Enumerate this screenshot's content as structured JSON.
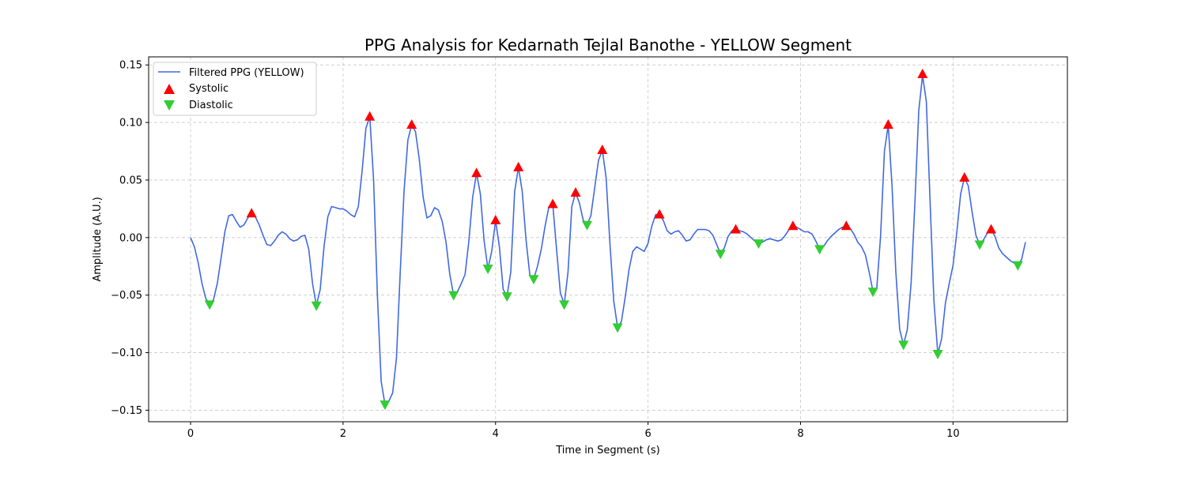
{
  "chart_data": {
    "type": "line",
    "title": "PPG Analysis for Kedarnath Tejlal Banothe - YELLOW Segment",
    "xlabel": "Time in Segment (s)",
    "ylabel": "Amplitude (A.U.)",
    "xlim": [
      -0.55,
      11.5
    ],
    "ylim": [
      -0.16,
      0.157
    ],
    "x_ticks": [
      0,
      2,
      4,
      6,
      8,
      10
    ],
    "x_tick_labels": [
      "0",
      "2",
      "4",
      "6",
      "8",
      "10"
    ],
    "y_ticks": [
      -0.15,
      -0.1,
      -0.05,
      0.0,
      0.05,
      0.1,
      0.15
    ],
    "y_tick_labels": [
      "−0.15",
      "−0.10",
      "−0.05",
      "0.00",
      "0.05",
      "0.10",
      "0.15"
    ],
    "grid": true,
    "legend_position": "upper-left",
    "colors": {
      "line": "#4169e1",
      "systolic": "#ff0000",
      "diastolic": "#32cd32"
    },
    "series": [
      {
        "name": "Filtered PPG (YELLOW)",
        "kind": "line",
        "points": [
          [
            0.0,
            0.0
          ],
          [
            0.05,
            -0.008
          ],
          [
            0.1,
            -0.022
          ],
          [
            0.15,
            -0.04
          ],
          [
            0.2,
            -0.053
          ],
          [
            0.25,
            -0.058
          ],
          [
            0.3,
            -0.054
          ],
          [
            0.35,
            -0.04
          ],
          [
            0.4,
            -0.018
          ],
          [
            0.45,
            0.005
          ],
          [
            0.5,
            0.019
          ],
          [
            0.55,
            0.02
          ],
          [
            0.6,
            0.014
          ],
          [
            0.65,
            0.009
          ],
          [
            0.7,
            0.011
          ],
          [
            0.75,
            0.017
          ],
          [
            0.8,
            0.021
          ],
          [
            0.85,
            0.018
          ],
          [
            0.9,
            0.011
          ],
          [
            0.95,
            0.002
          ],
          [
            1.0,
            -0.006
          ],
          [
            1.05,
            -0.007
          ],
          [
            1.1,
            -0.003
          ],
          [
            1.15,
            0.002
          ],
          [
            1.2,
            0.005
          ],
          [
            1.25,
            0.003
          ],
          [
            1.3,
            -0.001
          ],
          [
            1.35,
            -0.003
          ],
          [
            1.4,
            -0.002
          ],
          [
            1.45,
            0.001
          ],
          [
            1.5,
            0.002
          ],
          [
            1.55,
            -0.01
          ],
          [
            1.6,
            -0.04
          ],
          [
            1.65,
            -0.059
          ],
          [
            1.7,
            -0.045
          ],
          [
            1.75,
            -0.008
          ],
          [
            1.8,
            0.018
          ],
          [
            1.85,
            0.027
          ],
          [
            1.9,
            0.026
          ],
          [
            1.95,
            0.025
          ],
          [
            2.0,
            0.025
          ],
          [
            2.05,
            0.023
          ],
          [
            2.1,
            0.02
          ],
          [
            2.15,
            0.018
          ],
          [
            2.2,
            0.027
          ],
          [
            2.25,
            0.058
          ],
          [
            2.3,
            0.095
          ],
          [
            2.35,
            0.105
          ],
          [
            2.4,
            0.05
          ],
          [
            2.45,
            -0.05
          ],
          [
            2.5,
            -0.125
          ],
          [
            2.55,
            -0.145
          ],
          [
            2.6,
            -0.142
          ],
          [
            2.65,
            -0.135
          ],
          [
            2.7,
            -0.105
          ],
          [
            2.75,
            -0.03
          ],
          [
            2.8,
            0.04
          ],
          [
            2.85,
            0.085
          ],
          [
            2.9,
            0.098
          ],
          [
            2.95,
            0.092
          ],
          [
            3.0,
            0.068
          ],
          [
            3.05,
            0.035
          ],
          [
            3.1,
            0.017
          ],
          [
            3.15,
            0.019
          ],
          [
            3.2,
            0.026
          ],
          [
            3.25,
            0.024
          ],
          [
            3.3,
            0.014
          ],
          [
            3.35,
            -0.004
          ],
          [
            3.4,
            -0.032
          ],
          [
            3.45,
            -0.05
          ],
          [
            3.5,
            -0.047
          ],
          [
            3.55,
            -0.04
          ],
          [
            3.6,
            -0.032
          ],
          [
            3.65,
            -0.003
          ],
          [
            3.7,
            0.035
          ],
          [
            3.75,
            0.056
          ],
          [
            3.8,
            0.038
          ],
          [
            3.85,
            -0.003
          ],
          [
            3.9,
            -0.027
          ],
          [
            3.95,
            -0.012
          ],
          [
            4.0,
            0.015
          ],
          [
            4.05,
            -0.008
          ],
          [
            4.1,
            -0.045
          ],
          [
            4.15,
            -0.051
          ],
          [
            4.2,
            -0.03
          ],
          [
            4.25,
            0.04
          ],
          [
            4.3,
            0.061
          ],
          [
            4.35,
            0.04
          ],
          [
            4.4,
            -0.002
          ],
          [
            4.45,
            -0.033
          ],
          [
            4.5,
            -0.036
          ],
          [
            4.55,
            -0.025
          ],
          [
            4.6,
            -0.01
          ],
          [
            4.65,
            0.01
          ],
          [
            4.7,
            0.027
          ],
          [
            4.75,
            0.029
          ],
          [
            4.8,
            -0.01
          ],
          [
            4.85,
            -0.048
          ],
          [
            4.9,
            -0.058
          ],
          [
            4.95,
            -0.03
          ],
          [
            5.0,
            0.027
          ],
          [
            5.05,
            0.039
          ],
          [
            5.1,
            0.03
          ],
          [
            5.15,
            0.015
          ],
          [
            5.2,
            0.011
          ],
          [
            5.25,
            0.019
          ],
          [
            5.3,
            0.043
          ],
          [
            5.35,
            0.067
          ],
          [
            5.4,
            0.076
          ],
          [
            5.45,
            0.052
          ],
          [
            5.5,
            -0.005
          ],
          [
            5.55,
            -0.055
          ],
          [
            5.6,
            -0.078
          ],
          [
            5.65,
            -0.073
          ],
          [
            5.7,
            -0.052
          ],
          [
            5.75,
            -0.028
          ],
          [
            5.8,
            -0.012
          ],
          [
            5.85,
            -0.008
          ],
          [
            5.9,
            -0.01
          ],
          [
            5.95,
            -0.012
          ],
          [
            6.0,
            -0.005
          ],
          [
            6.05,
            0.01
          ],
          [
            6.1,
            0.02
          ],
          [
            6.15,
            0.02
          ],
          [
            6.2,
            0.015
          ],
          [
            6.25,
            0.006
          ],
          [
            6.3,
            0.003
          ],
          [
            6.35,
            0.005
          ],
          [
            6.4,
            0.006
          ],
          [
            6.45,
            0.002
          ],
          [
            6.5,
            -0.003
          ],
          [
            6.55,
            -0.002
          ],
          [
            6.6,
            0.003
          ],
          [
            6.65,
            0.007
          ],
          [
            6.7,
            0.007
          ],
          [
            6.75,
            0.007
          ],
          [
            6.8,
            0.006
          ],
          [
            6.85,
            0.002
          ],
          [
            6.9,
            -0.006
          ],
          [
            6.95,
            -0.014
          ],
          [
            7.0,
            -0.009
          ],
          [
            7.05,
            0.001
          ],
          [
            7.1,
            0.006
          ],
          [
            7.15,
            0.007
          ],
          [
            7.2,
            0.006
          ],
          [
            7.25,
            0.005
          ],
          [
            7.3,
            0.003
          ],
          [
            7.35,
            0.0
          ],
          [
            7.4,
            -0.003
          ],
          [
            7.45,
            -0.005
          ],
          [
            7.5,
            -0.004
          ],
          [
            7.55,
            -0.002
          ],
          [
            7.6,
            -0.001
          ],
          [
            7.65,
            -0.002
          ],
          [
            7.7,
            -0.003
          ],
          [
            7.75,
            -0.002
          ],
          [
            7.8,
            0.002
          ],
          [
            7.85,
            0.007
          ],
          [
            7.9,
            0.01
          ],
          [
            7.95,
            0.009
          ],
          [
            8.0,
            0.007
          ],
          [
            8.05,
            0.005
          ],
          [
            8.1,
            0.005
          ],
          [
            8.15,
            0.003
          ],
          [
            8.2,
            -0.003
          ],
          [
            8.25,
            -0.01
          ],
          [
            8.3,
            -0.008
          ],
          [
            8.35,
            -0.003
          ],
          [
            8.4,
            0.001
          ],
          [
            8.45,
            0.004
          ],
          [
            8.5,
            0.007
          ],
          [
            8.55,
            0.009
          ],
          [
            8.6,
            0.01
          ],
          [
            8.65,
            0.008
          ],
          [
            8.7,
            0.003
          ],
          [
            8.75,
            -0.004
          ],
          [
            8.8,
            -0.008
          ],
          [
            8.85,
            -0.015
          ],
          [
            8.9,
            -0.03
          ],
          [
            8.95,
            -0.047
          ],
          [
            9.0,
            -0.044
          ],
          [
            9.05,
            0.001
          ],
          [
            9.1,
            0.075
          ],
          [
            9.15,
            0.098
          ],
          [
            9.2,
            0.045
          ],
          [
            9.25,
            -0.03
          ],
          [
            9.3,
            -0.08
          ],
          [
            9.35,
            -0.093
          ],
          [
            9.4,
            -0.08
          ],
          [
            9.45,
            -0.04
          ],
          [
            9.5,
            0.03
          ],
          [
            9.55,
            0.11
          ],
          [
            9.6,
            0.141
          ],
          [
            9.65,
            0.118
          ],
          [
            9.7,
            0.03
          ],
          [
            9.75,
            -0.055
          ],
          [
            9.8,
            -0.101
          ],
          [
            9.85,
            -0.088
          ],
          [
            9.9,
            -0.057
          ],
          [
            9.95,
            -0.04
          ],
          [
            10.0,
            -0.024
          ],
          [
            10.05,
            0.005
          ],
          [
            10.1,
            0.038
          ],
          [
            10.15,
            0.052
          ],
          [
            10.2,
            0.045
          ],
          [
            10.25,
            0.022
          ],
          [
            10.3,
            0.002
          ],
          [
            10.35,
            -0.006
          ],
          [
            10.4,
            -0.002
          ],
          [
            10.45,
            0.004
          ],
          [
            10.5,
            0.007
          ],
          [
            10.55,
            0.001
          ],
          [
            10.6,
            -0.009
          ],
          [
            10.65,
            -0.014
          ],
          [
            10.7,
            -0.017
          ],
          [
            10.75,
            -0.02
          ],
          [
            10.8,
            -0.022
          ],
          [
            10.85,
            -0.024
          ],
          [
            10.9,
            -0.019
          ],
          [
            10.95,
            -0.004
          ]
        ]
      },
      {
        "name": "Systolic",
        "kind": "marker-up",
        "points": [
          [
            0.8,
            0.021
          ],
          [
            2.35,
            0.105
          ],
          [
            2.9,
            0.098
          ],
          [
            3.75,
            0.056
          ],
          [
            4.0,
            0.015
          ],
          [
            4.3,
            0.061
          ],
          [
            4.75,
            0.029
          ],
          [
            5.05,
            0.039
          ],
          [
            5.4,
            0.076
          ],
          [
            6.15,
            0.02
          ],
          [
            7.15,
            0.007
          ],
          [
            7.9,
            0.01
          ],
          [
            8.6,
            0.01
          ],
          [
            9.15,
            0.098
          ],
          [
            9.6,
            0.142
          ],
          [
            10.15,
            0.052
          ],
          [
            10.5,
            0.007
          ]
        ]
      },
      {
        "name": "Diastolic",
        "kind": "marker-down",
        "points": [
          [
            0.25,
            -0.058
          ],
          [
            1.65,
            -0.059
          ],
          [
            2.55,
            -0.145
          ],
          [
            3.45,
            -0.05
          ],
          [
            3.9,
            -0.027
          ],
          [
            4.15,
            -0.051
          ],
          [
            4.5,
            -0.036
          ],
          [
            4.9,
            -0.058
          ],
          [
            5.2,
            0.011
          ],
          [
            5.6,
            -0.078
          ],
          [
            6.95,
            -0.014
          ],
          [
            7.45,
            -0.005
          ],
          [
            8.25,
            -0.01
          ],
          [
            8.95,
            -0.047
          ],
          [
            9.35,
            -0.093
          ],
          [
            9.8,
            -0.101
          ],
          [
            10.35,
            -0.006
          ],
          [
            10.85,
            -0.024
          ]
        ]
      }
    ]
  }
}
